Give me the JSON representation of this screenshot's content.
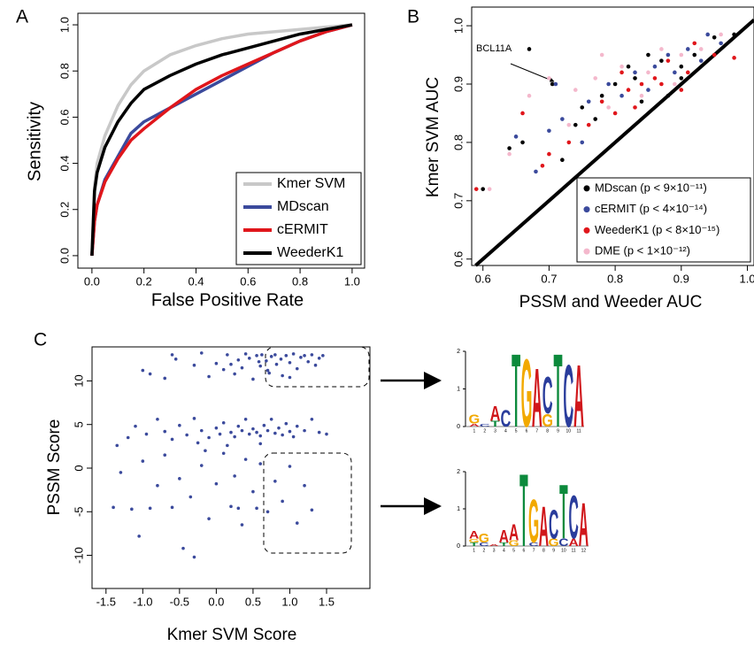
{
  "chart_data": [
    {
      "type": "line",
      "panel_label": "A",
      "x_label": "False Positive Rate",
      "y_label": "Sensitivity",
      "x": [
        0,
        0.01,
        0.02,
        0.05,
        0.1,
        0.15,
        0.2,
        0.3,
        0.4,
        0.5,
        0.6,
        0.7,
        0.8,
        0.9,
        1.0
      ],
      "series": [
        {
          "name": "Kmer SVM",
          "color": "#c8c8c8",
          "values": [
            0,
            0.3,
            0.4,
            0.52,
            0.65,
            0.74,
            0.8,
            0.87,
            0.91,
            0.94,
            0.96,
            0.97,
            0.98,
            0.99,
            1.0
          ]
        },
        {
          "name": "MDscan",
          "color": "#3b4a9c",
          "values": [
            0,
            0.15,
            0.22,
            0.33,
            0.43,
            0.53,
            0.58,
            0.64,
            0.7,
            0.76,
            0.82,
            0.88,
            0.93,
            0.97,
            1.0
          ]
        },
        {
          "name": "cERMIT",
          "color": "#e0161b",
          "values": [
            0,
            0.15,
            0.22,
            0.32,
            0.42,
            0.5,
            0.55,
            0.64,
            0.72,
            0.78,
            0.83,
            0.88,
            0.93,
            0.97,
            1.0
          ]
        },
        {
          "name": "WeederK1",
          "color": "#000000",
          "values": [
            0,
            0.28,
            0.36,
            0.47,
            0.58,
            0.66,
            0.72,
            0.78,
            0.83,
            0.87,
            0.9,
            0.93,
            0.96,
            0.98,
            1.0
          ]
        }
      ],
      "xlim": [
        -0.054,
        1.048
      ],
      "ylim": [
        -0.054,
        1.05
      ],
      "xticks": [
        {
          "value": 0,
          "label": "0.0"
        },
        0.2,
        0.4,
        0.6,
        0.8,
        {
          "value": 1,
          "label": "1.0"
        }
      ],
      "yticks": [
        {
          "value": 0,
          "label": "0.0"
        },
        0.2,
        0.4,
        0.6,
        0.8,
        {
          "value": 1,
          "label": "1.0"
        }
      ],
      "legend": "bottom-right"
    },
    {
      "type": "scatter",
      "panel_label": "B",
      "x_label": "PSSM and Weeder AUC",
      "y_label": "Kmer SVM AUC",
      "annotation": "BCL11A",
      "series": [
        {
          "name": "MDscan (p < 9×10⁻¹¹)",
          "color": "#000000",
          "x": [
            0.67,
            0.705,
            0.64,
            0.66,
            0.72,
            0.75,
            0.78,
            0.8,
            0.82,
            0.85,
            0.87,
            0.9,
            0.9,
            0.92,
            0.95,
            0.98,
            0.84,
            0.88,
            0.74,
            0.6,
            0.83,
            0.77
          ],
          "values": [
            0.96,
            0.9,
            0.79,
            0.8,
            0.77,
            0.86,
            0.88,
            0.9,
            0.93,
            0.95,
            0.94,
            0.91,
            0.93,
            0.95,
            0.98,
            0.985,
            0.87,
            0.88,
            0.83,
            0.72,
            0.91,
            0.84
          ]
        },
        {
          "name": "cERMIT (p < 4×10⁻¹⁴)",
          "color": "#3b4a9c",
          "x": [
            0.71,
            0.65,
            0.68,
            0.7,
            0.76,
            0.79,
            0.81,
            0.83,
            0.86,
            0.88,
            0.91,
            0.94,
            0.96,
            0.75,
            0.85,
            0.72,
            0.89,
            0.93
          ],
          "values": [
            0.9,
            0.81,
            0.75,
            0.82,
            0.87,
            0.9,
            0.88,
            0.92,
            0.93,
            0.95,
            0.96,
            0.985,
            0.97,
            0.8,
            0.89,
            0.84,
            0.92,
            0.94
          ]
        },
        {
          "name": "WeederK1 (p < 8×10⁻¹⁵)",
          "color": "#e0161b",
          "x": [
            0.59,
            0.66,
            0.7,
            0.73,
            0.69,
            0.78,
            0.8,
            0.82,
            0.84,
            0.86,
            0.88,
            0.9,
            0.92,
            0.95,
            0.98,
            0.81,
            0.87,
            0.76,
            0.83,
            0.91
          ],
          "values": [
            0.72,
            0.85,
            0.78,
            0.8,
            0.76,
            0.87,
            0.85,
            0.89,
            0.9,
            0.91,
            0.94,
            0.89,
            0.97,
            0.95,
            0.945,
            0.92,
            0.9,
            0.83,
            0.86,
            0.92
          ]
        },
        {
          "name": "DME (p < 1×10⁻¹²)",
          "color": "#f4b8cc",
          "x": [
            0.61,
            0.64,
            0.67,
            0.7,
            0.74,
            0.77,
            0.79,
            0.81,
            0.84,
            0.87,
            0.89,
            0.93,
            0.96,
            0.73,
            0.78,
            0.85,
            0.9
          ],
          "values": [
            0.72,
            0.78,
            0.88,
            0.91,
            0.89,
            0.91,
            0.86,
            0.93,
            0.88,
            0.96,
            0.9,
            0.96,
            0.985,
            0.83,
            0.95,
            0.92,
            0.95
          ]
        }
      ],
      "xlim": [
        0.583,
        1.01
      ],
      "ylim": [
        0.589,
        1.032
      ],
      "xticks": [
        0.6,
        0.7,
        0.8,
        0.9,
        {
          "value": 1,
          "label": "1.0"
        }
      ],
      "yticks": [
        0.6,
        0.7,
        0.8,
        0.9,
        {
          "value": 1,
          "label": "1.0"
        }
      ],
      "legend": "bottom-right"
    },
    {
      "type": "scatter",
      "panel_label": "C",
      "x_label": "Kmer SVM Score",
      "y_label": "PSSM Score",
      "color": "#3b4a9c",
      "x": [
        -0.6,
        -0.55,
        -0.3,
        -0.2,
        -0.1,
        0.0,
        0.1,
        0.15,
        0.25,
        0.3,
        0.35,
        0.4,
        0.45,
        0.5,
        0.55,
        0.6,
        0.62,
        0.68,
        0.72,
        0.75,
        0.8,
        0.82,
        0.88,
        0.9,
        0.95,
        1.0,
        1.05,
        1.1,
        1.15,
        1.2,
        1.25,
        1.3,
        1.35,
        1.4,
        1.45,
        -0.9,
        -1.0,
        -0.7,
        0.2,
        0.7,
        1.0,
        0.58,
        -1.35,
        -1.2,
        -1.1,
        -0.95,
        -0.8,
        -0.7,
        -0.6,
        -0.5,
        -0.4,
        -0.3,
        -0.2,
        -0.1,
        0.0,
        0.05,
        0.1,
        0.2,
        0.25,
        0.3,
        0.35,
        0.4,
        0.45,
        0.5,
        0.55,
        0.6,
        0.65,
        0.7,
        0.75,
        0.8,
        0.85,
        0.9,
        0.95,
        1.0,
        1.05,
        1.1,
        1.2,
        1.3,
        1.4,
        1.5,
        0.15,
        -0.25,
        0.6,
        -1.3,
        -1.15,
        -1.05,
        -1.0,
        -0.8,
        -0.7,
        -0.6,
        -0.5,
        -0.45,
        -0.3,
        -0.35,
        -0.2,
        -0.1,
        0.0,
        0.1,
        0.2,
        0.25,
        0.35,
        0.4,
        0.5,
        0.55,
        0.6,
        0.7,
        0.8,
        0.9,
        1.0,
        1.1,
        1.2,
        1.3,
        -0.9,
        -1.4,
        0.3,
        -0.15
      ],
      "values": [
        13,
        12.5,
        11.8,
        13.2,
        10.5,
        12,
        11.3,
        13,
        10.8,
        12.4,
        11.5,
        13.1,
        12.6,
        10.2,
        12.9,
        11.7,
        13,
        12.3,
        10.9,
        12.8,
        13,
        11.9,
        12.5,
        10.6,
        12.9,
        12.1,
        13.1,
        11.4,
        12.7,
        12.9,
        12.2,
        13,
        11.8,
        12.6,
        12.9,
        10.8,
        11.2,
        10.3,
        11.9,
        11.2,
        10.4,
        12.2,
        2.6,
        3.5,
        4.8,
        3.9,
        5.6,
        4.2,
        3.3,
        4.9,
        3.8,
        5.7,
        4.3,
        3.5,
        4.6,
        3.9,
        5.2,
        4.1,
        3.6,
        4.8,
        4.3,
        5.6,
        3.9,
        4.5,
        4.1,
        3.7,
        4.9,
        4.3,
        5.6,
        4.0,
        4.6,
        3.8,
        5.1,
        4.2,
        3.6,
        4.8,
        4.3,
        5.6,
        4.1,
        3.9,
        2.6,
        2.9,
        2.8,
        -0.5,
        -4.7,
        -7.8,
        0.8,
        -2.0,
        1.5,
        -4.5,
        -1.2,
        -9.2,
        -10.2,
        -3.3,
        0.3,
        -5.8,
        -1.8,
        1.7,
        -4.4,
        -0.9,
        -6.5,
        1.0,
        -2.7,
        -4.6,
        0.5,
        -5.0,
        -1.5,
        -3.8,
        0.2,
        -6.3,
        -2.0,
        -4.8,
        -4.6,
        -4.5,
        -4.6,
        2.0
      ],
      "xlim": [
        -1.69,
        2.09
      ],
      "ylim": [
        -13.8,
        13.9
      ],
      "xticks": [
        -1.5,
        {
          "value": -1,
          "label": "-1.0"
        },
        -0.5,
        {
          "value": 0,
          "label": "0.0"
        },
        0.5,
        {
          "value": 1,
          "label": "1.0"
        },
        1.5
      ],
      "yticks": [
        -10,
        -5,
        0,
        5,
        10
      ]
    },
    {
      "type": "logo",
      "ylim": [
        0,
        2
      ],
      "yticks": [
        0,
        1,
        2
      ],
      "colors": {
        "A": "#d0171b",
        "C": "#2a3d9c",
        "G": "#f2a900",
        "T": "#0c8a3c"
      },
      "categories": [
        "1",
        "2",
        "3",
        "4",
        "5",
        "6",
        "7",
        "8",
        "9",
        "10",
        "11"
      ],
      "columns": [
        [
          {
            "letter": "A",
            "height": 0.08
          },
          {
            "letter": "G",
            "height": 0.25
          }
        ],
        [
          {
            "letter": "C",
            "height": 0.08
          }
        ],
        [
          {
            "letter": "T",
            "height": 0.15
          },
          {
            "letter": "A",
            "height": 0.4
          }
        ],
        [
          {
            "letter": "C",
            "height": 0.45
          }
        ],
        [
          {
            "letter": "T",
            "height": 2.0
          }
        ],
        [
          {
            "letter": "G",
            "height": 1.85
          }
        ],
        [
          {
            "letter": "A",
            "height": 1.6
          }
        ],
        [
          {
            "letter": "G",
            "height": 0.35
          },
          {
            "letter": "C",
            "height": 1.0
          }
        ],
        [
          {
            "letter": "T",
            "height": 2.0
          }
        ],
        [
          {
            "letter": "C",
            "height": 1.7
          }
        ],
        [
          {
            "letter": "A",
            "height": 1.7
          }
        ]
      ]
    },
    {
      "type": "logo",
      "ylim": [
        0,
        2
      ],
      "yticks": [
        0,
        1,
        2
      ],
      "colors": {
        "A": "#d0171b",
        "C": "#2a3d9c",
        "G": "#f2a900",
        "T": "#0c8a3c"
      },
      "categories": [
        "1",
        "2",
        "3",
        "4",
        "5",
        "6",
        "7",
        "8",
        "9",
        "10",
        "11",
        "12"
      ],
      "columns": [
        [
          {
            "letter": "T",
            "height": 0.1
          },
          {
            "letter": "G",
            "height": 0.1
          },
          {
            "letter": "A",
            "height": 0.2
          }
        ],
        [
          {
            "letter": "C",
            "height": 0.1
          },
          {
            "letter": "G",
            "height": 0.25
          }
        ],
        [
          {
            "letter": "A",
            "height": 0.05
          }
        ],
        [
          {
            "letter": "T",
            "height": 0.1
          },
          {
            "letter": "A",
            "height": 0.35
          }
        ],
        [
          {
            "letter": "G",
            "height": 0.15
          },
          {
            "letter": "A",
            "height": 0.45
          }
        ],
        [
          {
            "letter": "T",
            "height": 2.0
          }
        ],
        [
          {
            "letter": "C",
            "height": 0.1
          },
          {
            "letter": "G",
            "height": 1.2
          }
        ],
        [
          {
            "letter": "A",
            "height": 1.1
          }
        ],
        [
          {
            "letter": "G",
            "height": 0.2
          },
          {
            "letter": "C",
            "height": 0.8
          }
        ],
        [
          {
            "letter": "C",
            "height": 0.2
          },
          {
            "letter": "T",
            "height": 1.5
          }
        ],
        [
          {
            "letter": "A",
            "height": 0.2
          },
          {
            "letter": "C",
            "height": 1.2
          }
        ],
        [
          {
            "letter": "A",
            "height": 1.2
          }
        ]
      ]
    }
  ]
}
